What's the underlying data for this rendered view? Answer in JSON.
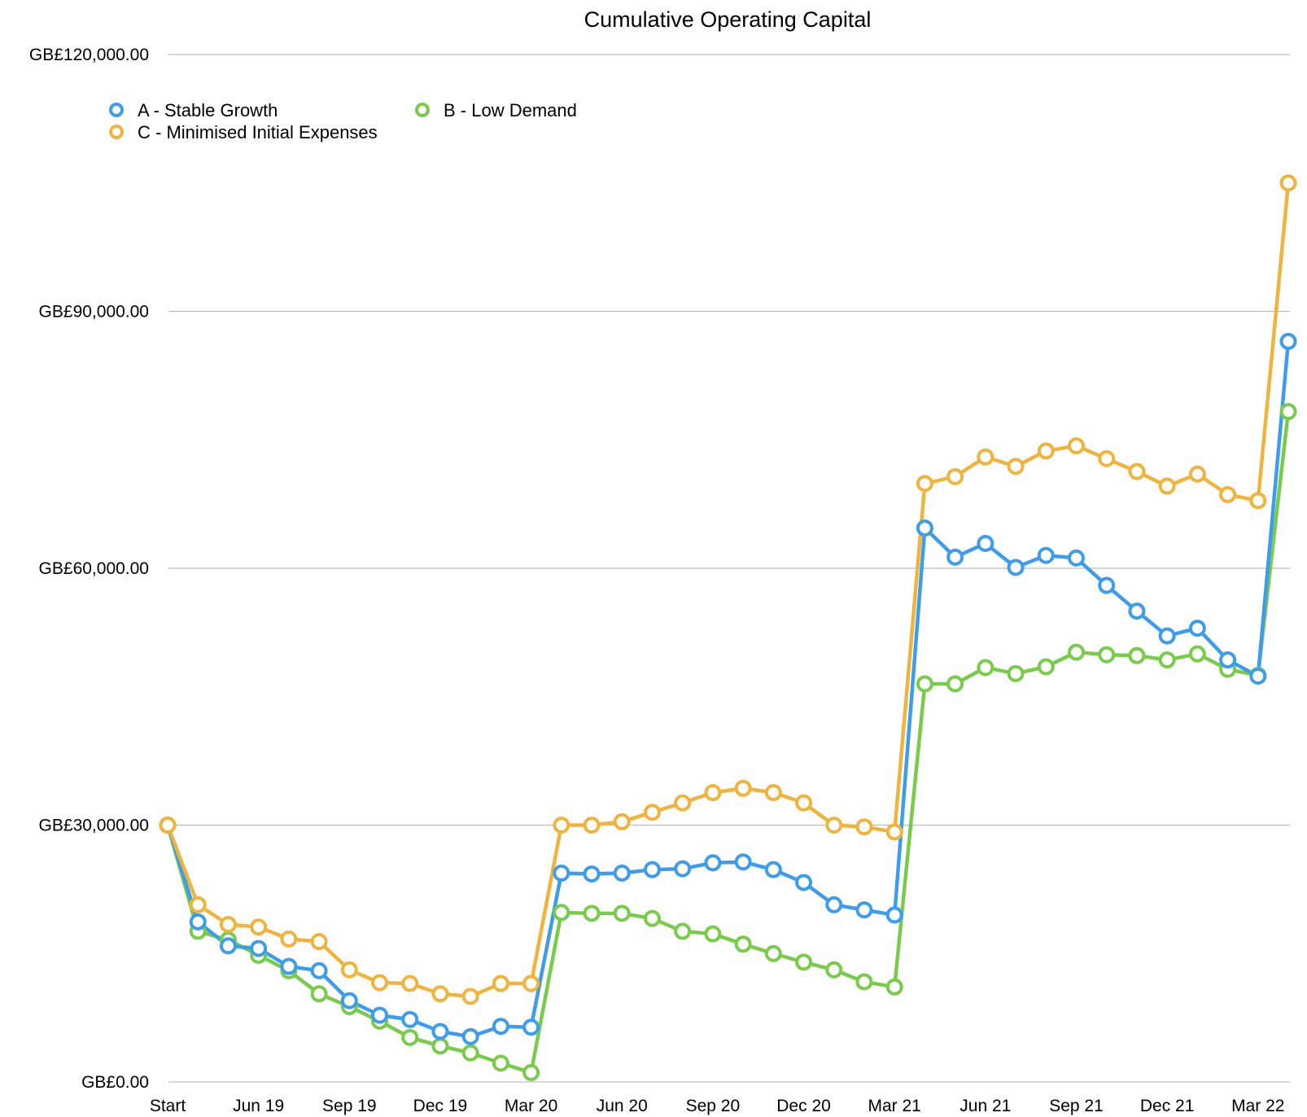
{
  "chart_data": {
    "type": "line",
    "title": "Cumulative Operating Capital",
    "xlabel": "",
    "ylabel": "",
    "ylim": [
      0,
      120000
    ],
    "y_ticks": [
      {
        "value": 0,
        "label": "GB£0.00"
      },
      {
        "value": 30000,
        "label": "GB£30,000.00"
      },
      {
        "value": 60000,
        "label": "GB£60,000.00"
      },
      {
        "value": 90000,
        "label": "GB£90,000.00"
      },
      {
        "value": 120000,
        "label": "GB£120,000.00"
      }
    ],
    "grid": true,
    "legend_position": "top-left",
    "categories": [
      "Start",
      "Apr 19",
      "May 19",
      "Jun 19",
      "Jul 19",
      "Aug 19",
      "Sep 19",
      "Oct 19",
      "Nov 19",
      "Dec 19",
      "Jan 20",
      "Feb 20",
      "Mar 20",
      "Apr 20",
      "May 20",
      "Jun 20",
      "Jul 20",
      "Aug 20",
      "Sep 20",
      "Oct 20",
      "Nov 20",
      "Dec 20",
      "Jan 21",
      "Feb 21",
      "Mar 21",
      "Apr 21",
      "May 21",
      "Jun 21",
      "Jul 21",
      "Aug 21",
      "Sep 21",
      "Oct 21",
      "Nov 21",
      "Dec 21",
      "Jan 22",
      "Feb 22",
      "Mar 22",
      "Apr 22"
    ],
    "x_tick_labels": [
      {
        "index": 0,
        "label": "Start"
      },
      {
        "index": 3,
        "label": "Jun 19"
      },
      {
        "index": 6,
        "label": "Sep 19"
      },
      {
        "index": 9,
        "label": "Dec 19"
      },
      {
        "index": 12,
        "label": "Mar 20"
      },
      {
        "index": 15,
        "label": "Jun 20"
      },
      {
        "index": 18,
        "label": "Sep 20"
      },
      {
        "index": 21,
        "label": "Dec 20"
      },
      {
        "index": 24,
        "label": "Mar 21"
      },
      {
        "index": 27,
        "label": "Jun 21"
      },
      {
        "index": 30,
        "label": "Sep 21"
      },
      {
        "index": 33,
        "label": "Dec 21"
      },
      {
        "index": 36,
        "label": "Mar 22"
      }
    ],
    "series": [
      {
        "name": "A - Stable Growth",
        "color": "#3d9cec",
        "values": [
          30000,
          18700,
          15900,
          15600,
          13500,
          13000,
          9500,
          7800,
          7300,
          5900,
          5300,
          6500,
          6400,
          24400,
          24300,
          24400,
          24800,
          24900,
          25600,
          25700,
          24800,
          23300,
          20700,
          20100,
          19500,
          64700,
          61300,
          62900,
          60100,
          61500,
          61200,
          58000,
          55000,
          52100,
          53000,
          49300,
          47400,
          86500
        ]
      },
      {
        "name": "B - Low Demand",
        "color": "#78cc49",
        "values": [
          30000,
          17600,
          16600,
          14800,
          13000,
          10300,
          8800,
          7100,
          5200,
          4200,
          3400,
          2200,
          1100,
          19800,
          19700,
          19700,
          19100,
          17600,
          17300,
          16100,
          15000,
          14000,
          13100,
          11700,
          11100,
          46500,
          46500,
          48400,
          47700,
          48500,
          50200,
          49900,
          49800,
          49300,
          50000,
          48200,
          47500,
          78300
        ]
      },
      {
        "name": "C - Minimised Initial Expenses",
        "color": "#f0b43c",
        "values": [
          30000,
          20700,
          18400,
          18100,
          16700,
          16400,
          13100,
          11600,
          11500,
          10300,
          10000,
          11500,
          11500,
          30000,
          30000,
          30400,
          31500,
          32600,
          33800,
          34300,
          33800,
          32600,
          30000,
          29800,
          29200,
          69900,
          70700,
          73000,
          71900,
          73700,
          74300,
          72800,
          71300,
          69600,
          71000,
          68600,
          67900,
          105000
        ]
      }
    ]
  }
}
